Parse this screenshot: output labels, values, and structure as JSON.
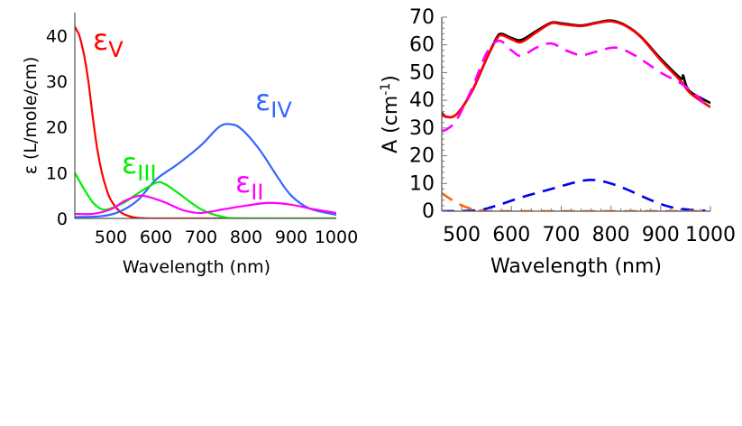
{
  "chart_data": [
    {
      "type": "line",
      "title": "",
      "xlabel": "Wavelength (nm)",
      "ylabel": "ε (L/mole/cm)",
      "xlim": [
        420,
        1000
      ],
      "ylim": [
        0,
        45
      ],
      "xticks": [
        500,
        600,
        700,
        800,
        900,
        1000
      ],
      "yticks": [
        0,
        10,
        20,
        30,
        40
      ],
      "grid": false,
      "series": [
        {
          "name": "εV",
          "label": "ε",
          "sub": "V",
          "color": "#ff0000",
          "x": [
            420,
            425,
            430,
            440,
            450,
            460,
            470,
            480,
            490,
            500,
            520,
            540,
            560,
            600,
            700,
            800,
            900,
            1000
          ],
          "y": [
            42,
            41,
            40,
            36,
            30,
            22,
            15,
            10,
            6.5,
            4,
            1.5,
            0.5,
            0.1,
            0,
            0,
            0,
            0,
            0
          ]
        },
        {
          "name": "εIV",
          "label": "ε",
          "sub": "IV",
          "color": "#3366ff",
          "x": [
            420,
            480,
            520,
            560,
            600,
            650,
            700,
            740,
            765,
            790,
            830,
            870,
            900,
            940,
            1000
          ],
          "y": [
            0.3,
            0.5,
            1.5,
            4,
            8.5,
            12,
            16,
            20,
            20.6,
            19.5,
            15,
            9,
            5,
            2.2,
            0.8
          ]
        },
        {
          "name": "εIII",
          "label": "ε",
          "sub": "III",
          "color": "#00ee00",
          "x": [
            420,
            440,
            460,
            480,
            500,
            530,
            560,
            600,
            620,
            650,
            700,
            750,
            800,
            1000
          ],
          "y": [
            10,
            6.5,
            3.5,
            2,
            2.2,
            3.5,
            5.5,
            7.8,
            7.5,
            5.5,
            2,
            0.3,
            0,
            0
          ]
        },
        {
          "name": "εII",
          "label": "ε",
          "sub": "II",
          "color": "#ff00ff",
          "x": [
            420,
            460,
            500,
            530,
            560,
            580,
            620,
            660,
            700,
            750,
            800,
            850,
            900,
            950,
            1000
          ],
          "y": [
            1,
            1,
            2,
            3.8,
            4.9,
            4.8,
            3.5,
            1.8,
            1.2,
            2,
            2.8,
            3.4,
            3,
            2,
            1.2
          ]
        }
      ]
    },
    {
      "type": "line",
      "title": "",
      "xlabel": "Wavelength (nm)",
      "ylabel": "A (cm",
      "ylabel_sup": "-1",
      "ylabel_end": ")",
      "xlim": [
        460,
        1000
      ],
      "ylim": [
        0,
        70
      ],
      "xticks": [
        500,
        600,
        700,
        800,
        900,
        1000
      ],
      "yticks": [
        0,
        10,
        20,
        30,
        40,
        50,
        60,
        70
      ],
      "grid": false,
      "series": [
        {
          "color": "#000000",
          "dash": false,
          "x": [
            460,
            470,
            490,
            520,
            550,
            570,
            580,
            600,
            620,
            650,
            680,
            700,
            740,
            770,
            800,
            830,
            860,
            900,
            940,
            945,
            950,
            960,
            1000
          ],
          "y": [
            35.5,
            34,
            35,
            43,
            55,
            62.5,
            64,
            62.5,
            61.8,
            65,
            68,
            67.8,
            67,
            68,
            68.8,
            67,
            63,
            55,
            48,
            49,
            46,
            43,
            39
          ]
        },
        {
          "color": "#ff0000",
          "dash": false,
          "x": [
            460,
            470,
            490,
            520,
            550,
            570,
            580,
            600,
            620,
            650,
            680,
            700,
            740,
            770,
            800,
            830,
            860,
            900,
            940,
            960,
            1000
          ],
          "y": [
            35,
            34,
            35,
            43,
            55,
            62,
            63.5,
            62,
            61,
            64.5,
            67.8,
            67.5,
            66.8,
            67.8,
            68.5,
            66.8,
            62.8,
            54.5,
            47,
            42.5,
            37.5
          ]
        },
        {
          "color": "#ff00ff",
          "dash": true,
          "x": [
            460,
            470,
            490,
            520,
            550,
            575,
            600,
            620,
            650,
            680,
            710,
            740,
            770,
            810,
            850,
            900,
            950,
            1000
          ],
          "y": [
            29,
            29.5,
            33,
            44,
            57,
            61.5,
            58,
            56,
            59,
            60.5,
            58,
            56.3,
            57.5,
            59,
            56,
            50,
            45,
            37
          ]
        },
        {
          "color": "#0000ee",
          "dash": true,
          "x": [
            460,
            530,
            570,
            620,
            680,
            730,
            760,
            790,
            830,
            880,
            920,
            960,
            990
          ],
          "y": [
            0,
            0.3,
            2,
            5,
            8,
            10.5,
            11.3,
            10.5,
            8,
            4,
            1.5,
            0.5,
            0.2
          ]
        },
        {
          "color": "#ff6600",
          "dash": true,
          "x": [
            460,
            490,
            520,
            550,
            600,
            700,
            800,
            900,
            990
          ],
          "y": [
            6.5,
            3,
            0.8,
            0,
            0,
            0,
            0,
            0,
            0
          ]
        }
      ]
    }
  ]
}
